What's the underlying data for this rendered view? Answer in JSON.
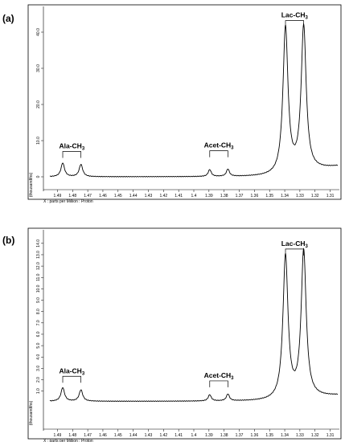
{
  "chart_data": [
    {
      "type": "line",
      "panel_label": "(a)",
      "xlabel": "X : parts per Million : Proton",
      "ylabel": "(thousandths)",
      "x_reversed": true,
      "xlim": [
        1.495,
        1.305
      ],
      "ylim": [
        -4,
        44
      ],
      "x_ticks": [
        "1.49",
        "1.48",
        "1.47",
        "1.46",
        "1.45",
        "1.44",
        "1.43",
        "1.42",
        "1.41",
        "1.4",
        "1.39",
        "1.38",
        "1.37",
        "1.36",
        "1.35",
        "1.34",
        "1.33",
        "1.32",
        "1.31"
      ],
      "y_ticks": [
        "0",
        "10.0",
        "20.0",
        "30.0",
        "40.0"
      ],
      "baseline": 0.0,
      "right_baseline": 2.8,
      "peaks": [
        {
          "ppm": 1.4865,
          "height": 3.8,
          "width": 0.0014
        },
        {
          "ppm": 1.4745,
          "height": 3.4,
          "width": 0.0014
        },
        {
          "ppm": 1.3895,
          "height": 1.9,
          "width": 0.0012
        },
        {
          "ppm": 1.3775,
          "height": 2.0,
          "width": 0.0012
        },
        {
          "ppm": 1.3395,
          "height": 40.5,
          "width": 0.002
        },
        {
          "ppm": 1.3275,
          "height": 40.0,
          "width": 0.002
        }
      ],
      "annotations": [
        {
          "text": "Ala-CH",
          "sub": "3",
          "ppm_start": 1.4865,
          "ppm_end": 1.4745,
          "value": 7.0
        },
        {
          "text": "Acet-CH",
          "sub": "3",
          "ppm_start": 1.3895,
          "ppm_end": 1.3775,
          "value": 7.2
        },
        {
          "text": "Lac-CH",
          "sub": "3",
          "ppm_start": 1.3395,
          "ppm_end": 1.3275,
          "value": 43.2
        }
      ]
    },
    {
      "type": "line",
      "panel_label": "(b)",
      "xlabel": "X : parts per Million : Proton",
      "ylabel": "(thousandths)",
      "x_reversed": true,
      "xlim": [
        1.495,
        1.305
      ],
      "ylim": [
        -1.5,
        14.2
      ],
      "x_ticks": [
        "1.49",
        "1.48",
        "1.47",
        "1.46",
        "1.45",
        "1.44",
        "1.43",
        "1.42",
        "1.41",
        "1.4",
        "1.39",
        "1.38",
        "1.37",
        "1.36",
        "1.35",
        "1.34",
        "1.33",
        "1.32",
        "1.31"
      ],
      "y_ticks": [
        "1.0",
        "2.0",
        "3.0",
        "4.0",
        "5.0",
        "6.0",
        "7.0",
        "8.0",
        "9.0",
        "10.0",
        "11.0",
        "12.0",
        "13.0",
        "14.0"
      ],
      "baseline": 0.1,
      "right_baseline": 0.6,
      "peaks": [
        {
          "ppm": 1.4865,
          "height": 1.2,
          "width": 0.0014
        },
        {
          "ppm": 1.4745,
          "height": 1.0,
          "width": 0.0014
        },
        {
          "ppm": 1.3895,
          "height": 0.55,
          "width": 0.0012
        },
        {
          "ppm": 1.3775,
          "height": 0.6,
          "width": 0.0012
        },
        {
          "ppm": 1.3395,
          "height": 12.6,
          "width": 0.002
        },
        {
          "ppm": 1.3275,
          "height": 12.9,
          "width": 0.002
        }
      ],
      "annotations": [
        {
          "text": "Ala-CH",
          "sub": "3",
          "ppm_start": 1.4865,
          "ppm_end": 1.4745,
          "value": 2.3
        },
        {
          "text": "Acet-CH",
          "sub": "3",
          "ppm_start": 1.3895,
          "ppm_end": 1.3775,
          "value": 1.9
        },
        {
          "text": "Lac-CH",
          "sub": "3",
          "ppm_start": 1.3395,
          "ppm_end": 1.3275,
          "value": 13.5
        }
      ]
    }
  ]
}
